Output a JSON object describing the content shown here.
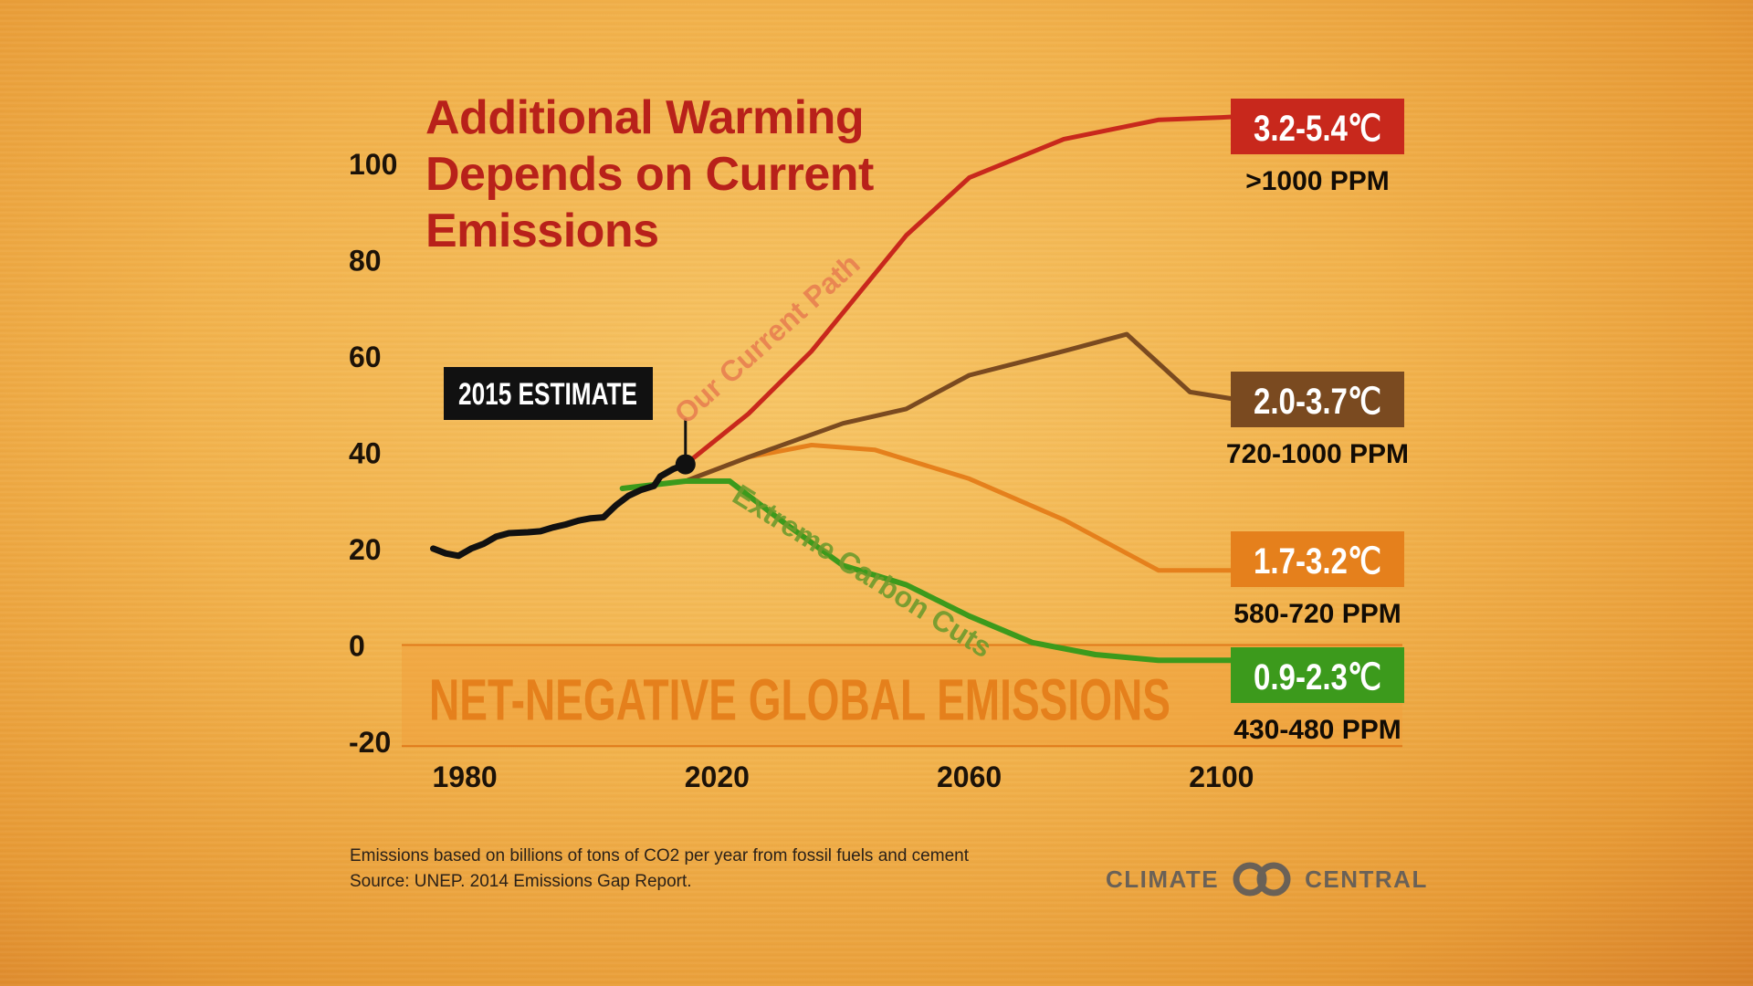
{
  "title_lines": [
    "Additional Warming",
    "Depends on Current",
    "Emissions"
  ],
  "footnote_lines": [
    "Emissions based on billions of tons of CO2 per year from fossil fuels and cement",
    "Source: UNEP. 2014 Emissions Gap Report."
  ],
  "logo": {
    "left_word": "CLIMATE",
    "right_word": "CENTRAL",
    "icon": "climate-central-rings-icon"
  },
  "estimate_label": "2015 ESTIMATE",
  "negative_band_label": "NET-NEGATIVE GLOBAL EMISSIONS",
  "colors": {
    "title": "#b8211a",
    "current_path": "#c8281c",
    "mid_high": "#7a4a20",
    "mid_low": "#e5801c",
    "cuts": "#3c9a1c",
    "history": "#111111",
    "band": "#f0a03c",
    "band_text": "#e5801c"
  },
  "chart_data": {
    "type": "line",
    "title": "Additional Warming Depends on Current Emissions",
    "xlabel": "",
    "ylabel": "",
    "xlim": [
      1970,
      2130
    ],
    "ylim": [
      -20,
      110
    ],
    "x_ticks": [
      1980,
      2020,
      2060,
      2100
    ],
    "y_ticks": [
      100,
      80,
      60,
      40,
      20,
      0,
      -20
    ],
    "grid": false,
    "history": {
      "points": [
        [
          1975,
          20
        ],
        [
          1977,
          19
        ],
        [
          1979,
          18.5
        ],
        [
          1981,
          20
        ],
        [
          1983,
          21
        ],
        [
          1985,
          22.5
        ],
        [
          1987,
          23.2
        ],
        [
          1990,
          23.4
        ],
        [
          1992,
          23.6
        ],
        [
          1994,
          24.4
        ],
        [
          1996,
          25
        ],
        [
          1998,
          25.8
        ],
        [
          2000,
          26.3
        ],
        [
          2002,
          26.5
        ],
        [
          2004,
          29
        ],
        [
          2006,
          31
        ],
        [
          2008,
          32.2
        ],
        [
          2010,
          33
        ],
        [
          2011,
          35
        ],
        [
          2013,
          36.5
        ],
        [
          2015,
          37.5
        ]
      ],
      "estimate_year": 2015,
      "estimate_value": 37.5
    },
    "band": {
      "from": 0,
      "to": -21
    },
    "series": [
      {
        "key": "current_path",
        "label": "Our Current Path",
        "temp": "3.2-5.4℃",
        "ppm": ">1000 PPM",
        "points": [
          [
            2015,
            37.5
          ],
          [
            2025,
            48
          ],
          [
            2035,
            61
          ],
          [
            2050,
            85
          ],
          [
            2060,
            97
          ],
          [
            2075,
            105
          ],
          [
            2090,
            109
          ],
          [
            2100,
            109.5
          ],
          [
            2107,
            110
          ]
        ]
      },
      {
        "key": "mid_high",
        "label": "",
        "temp": "2.0-3.7℃",
        "ppm": "720-1000 PPM",
        "points": [
          [
            2005,
            32.5
          ],
          [
            2015,
            34
          ],
          [
            2025,
            39
          ],
          [
            2040,
            46
          ],
          [
            2050,
            49
          ],
          [
            2060,
            56
          ],
          [
            2075,
            61
          ],
          [
            2085,
            64.5
          ],
          [
            2095,
            52.5
          ],
          [
            2107,
            50
          ]
        ]
      },
      {
        "key": "mid_low",
        "label": "",
        "temp": "1.7-3.2℃",
        "ppm": "580-720 PPM",
        "points": [
          [
            2005,
            32.5
          ],
          [
            2015,
            34
          ],
          [
            2025,
            39
          ],
          [
            2035,
            41.5
          ],
          [
            2045,
            40.5
          ],
          [
            2060,
            34.5
          ],
          [
            2075,
            26
          ],
          [
            2090,
            15.5
          ],
          [
            2100,
            15.5
          ],
          [
            2107,
            15.5
          ]
        ]
      },
      {
        "key": "cuts",
        "label": "Extreme Carbon Cuts",
        "temp": "0.9-2.3℃",
        "ppm": "430-480 PPM",
        "points": [
          [
            2005,
            32.5
          ],
          [
            2015,
            34
          ],
          [
            2022,
            34
          ],
          [
            2030,
            26
          ],
          [
            2040,
            16.5
          ],
          [
            2050,
            12.5
          ],
          [
            2060,
            6
          ],
          [
            2070,
            0.5
          ],
          [
            2080,
            -2
          ],
          [
            2090,
            -3.2
          ],
          [
            2107,
            -3.2
          ]
        ]
      }
    ]
  }
}
